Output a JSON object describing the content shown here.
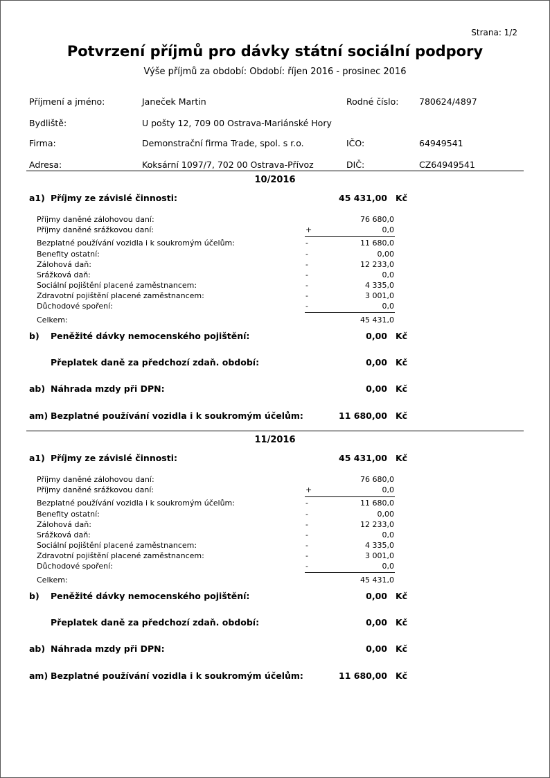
{
  "page_number": "Strana: 1/2",
  "title": "Potvrzení příjmů pro dávky státní sociální podpory",
  "subtitle": "Výše příjmů za období:  Období: říjen 2016 - prosinec 2016",
  "person": {
    "name_label": "Příjmení a jméno:",
    "name": "Janeček Martin",
    "birth_label": "Rodné číslo:",
    "birth": "780624/4897",
    "address_label": "Bydliště:",
    "address": "U pošty 12,  709 00  Ostrava-Mariánské Hory",
    "company_label": "Firma:",
    "company": "Demonstrační firma Trade, spol. s r.o.",
    "ico_label": "IČO:",
    "ico": "64949541",
    "company_address_label": "Adresa:",
    "company_address": "Koksární 1097/7,  702 00  Ostrava-Přívoz",
    "dic_label": "DIČ:",
    "dic": "CZ64949541"
  },
  "months": [
    {
      "period": "10/2016",
      "a1": {
        "prefix": "a1)",
        "label": "Příjmy ze závislé činnosti:",
        "value": "45 431,00",
        "currency": "Kč"
      },
      "details": [
        {
          "label": "Příjmy daněné zálohovou daní:",
          "sign": "",
          "value": "76 680,0"
        },
        {
          "label": "Příjmy daněné srážkovou daní:",
          "sign": "+",
          "value": "0,0"
        },
        {
          "label": "Bezplatné používání vozidla i k soukromým účelům:",
          "sign": "-",
          "value": "11 680,0"
        },
        {
          "label": "Benefity ostatní:",
          "sign": "-",
          "value": "0,00"
        },
        {
          "label": "Zálohová daň:",
          "sign": "-",
          "value": "12 233,0"
        },
        {
          "label": "Srážková daň:",
          "sign": "-",
          "value": "0,0"
        },
        {
          "label": "Sociální pojištění placené zaměstnancem:",
          "sign": "-",
          "value": "4 335,0"
        },
        {
          "label": "Zdravotní pojištění placené zaměstnancem:",
          "sign": "-",
          "value": "3 001,0"
        },
        {
          "label": "Důchodové spoření:",
          "sign": "-",
          "value": "0,0"
        }
      ],
      "total": {
        "label": "Celkem:",
        "value": "45 431,0"
      },
      "summary": [
        {
          "prefix": "b)",
          "label": "Peněžité dávky nemocenského pojištění:",
          "value": "0,00",
          "currency": "Kč"
        },
        {
          "prefix": "",
          "label": "Přeplatek daně za předchozí zdaň. období:",
          "value": "0,00",
          "currency": "Kč"
        },
        {
          "prefix": "ab)",
          "label": "Náhrada mzdy při DPN:",
          "value": "0,00",
          "currency": "Kč"
        },
        {
          "prefix": "am)",
          "label": "Bezplatné používání vozidla i k soukromým účelům:",
          "value": "11 680,00",
          "currency": "Kč"
        }
      ]
    },
    {
      "period": "11/2016",
      "a1": {
        "prefix": "a1)",
        "label": "Příjmy ze závislé činnosti:",
        "value": "45 431,00",
        "currency": "Kč"
      },
      "details": [
        {
          "label": "Příjmy daněné zálohovou daní:",
          "sign": "",
          "value": "76 680,0"
        },
        {
          "label": "Příjmy daněné srážkovou daní:",
          "sign": "+",
          "value": "0,0"
        },
        {
          "label": "Bezplatné používání vozidla i k soukromým účelům:",
          "sign": "-",
          "value": "11 680,0"
        },
        {
          "label": "Benefity ostatní:",
          "sign": "-",
          "value": "0,00"
        },
        {
          "label": "Zálohová daň:",
          "sign": "-",
          "value": "12 233,0"
        },
        {
          "label": "Srážková daň:",
          "sign": "-",
          "value": "0,0"
        },
        {
          "label": "Sociální pojištění placené zaměstnancem:",
          "sign": "-",
          "value": "4 335,0"
        },
        {
          "label": "Zdravotní pojištění placené zaměstnancem:",
          "sign": "-",
          "value": "3 001,0"
        },
        {
          "label": "Důchodové spoření:",
          "sign": "-",
          "value": "0,0"
        }
      ],
      "total": {
        "label": "Celkem:",
        "value": "45 431,0"
      },
      "summary": [
        {
          "prefix": "b)",
          "label": "Peněžité dávky nemocenského pojištění:",
          "value": "0,00",
          "currency": "Kč"
        },
        {
          "prefix": "",
          "label": "Přeplatek daně za předchozí zdaň. období:",
          "value": "0,00",
          "currency": "Kč"
        },
        {
          "prefix": "ab)",
          "label": "Náhrada mzdy při DPN:",
          "value": "0,00",
          "currency": "Kč"
        },
        {
          "prefix": "am)",
          "label": "Bezplatné používání vozidla i k soukromým účelům:",
          "value": "11 680,00",
          "currency": "Kč"
        }
      ]
    }
  ]
}
